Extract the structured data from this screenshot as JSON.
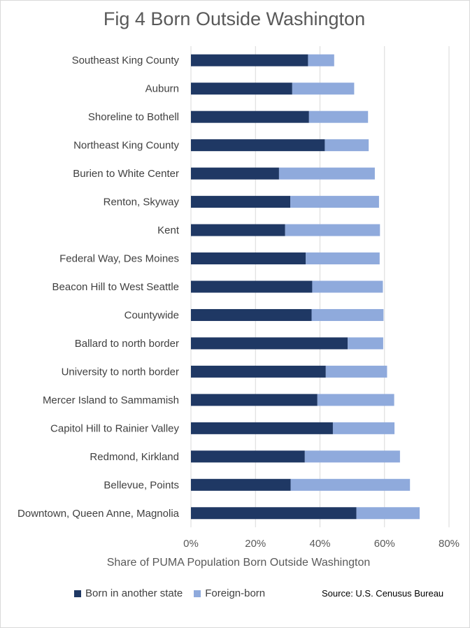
{
  "chart_data": {
    "type": "bar",
    "orientation": "horizontal",
    "stacked": true,
    "title": "Fig 4 Born Outside Washington",
    "xlabel": "Share of PUMA Population Born Outside Washington",
    "ylabel": "",
    "xlim": [
      0,
      80
    ],
    "xticks": [
      "0%",
      "20%",
      "40%",
      "60%",
      "80%"
    ],
    "categories": [
      "Southeast King County",
      "Auburn",
      "Shoreline to Bothell",
      "Northeast King County",
      "Burien to White Center",
      "Renton, Skyway",
      "Kent",
      "Federal Way, Des Moines",
      "Beacon Hill to West Seattle",
      "Countywide",
      "Ballard to north border",
      "University to north border",
      "Mercer Island to Sammamish",
      "Capitol Hill to Rainier Valley",
      "Redmond, Kirkland",
      "Bellevue, Points",
      "Downtown, Queen Anne, Magnolia"
    ],
    "series": [
      {
        "name": "Born in another state",
        "color": "#1f3864",
        "values": [
          36.3,
          31.4,
          36.6,
          41.5,
          27.3,
          30.8,
          29.2,
          35.6,
          37.6,
          37.4,
          48.6,
          41.8,
          39.2,
          44.0,
          35.3,
          30.9,
          51.3
        ]
      },
      {
        "name": "Foreign-born",
        "color": "#8faadc",
        "values": [
          8.1,
          19.2,
          18.3,
          13.6,
          29.7,
          27.5,
          29.4,
          22.9,
          21.9,
          22.3,
          11.0,
          19.0,
          23.8,
          19.1,
          29.5,
          37.0,
          19.6
        ]
      }
    ],
    "grid": true,
    "legend_position": "bottom"
  },
  "source_note": "Source: U.S. Cenusus Bureau"
}
